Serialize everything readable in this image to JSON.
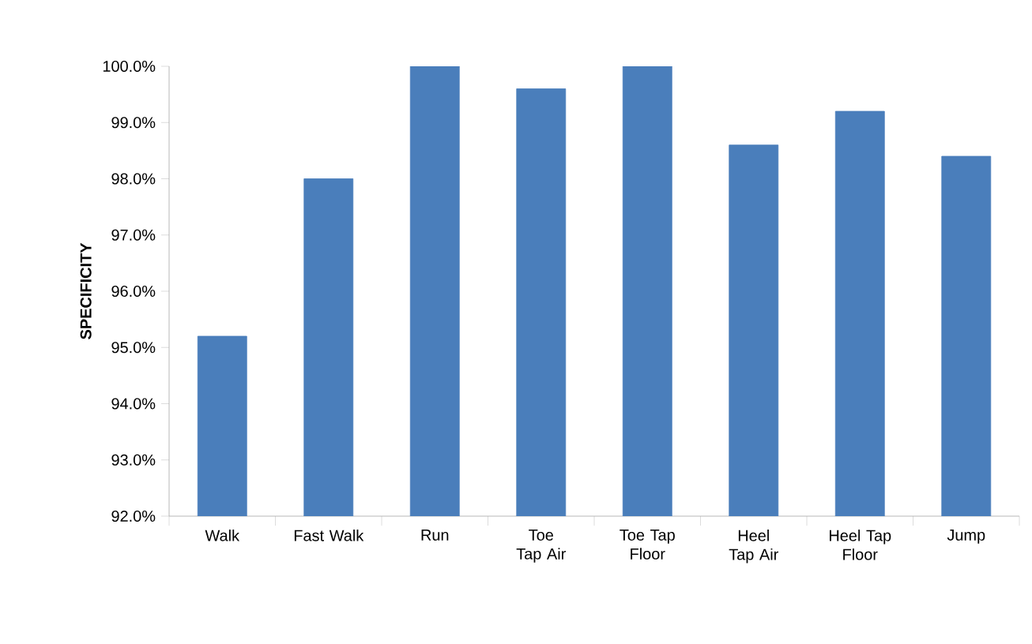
{
  "chart_data": {
    "type": "bar",
    "ylabel": "SPECIFICITY",
    "categories": [
      "Walk",
      "Fast Walk",
      "Run",
      "Toe Tap Air",
      "Toe Tap Floor",
      "Heel Tap Air",
      "Heel Tap Floor",
      "Jump"
    ],
    "values": [
      95.2,
      98.0,
      100.0,
      99.6,
      100.0,
      98.6,
      99.2,
      98.4
    ],
    "color": "#4a7ebb",
    "ylim": [
      92,
      100
    ],
    "yticks": [
      {
        "value": 92,
        "label": "92.0%"
      },
      {
        "value": 93,
        "label": "93.0%"
      },
      {
        "value": 94,
        "label": "94.0%"
      },
      {
        "value": 95,
        "label": "95.0%"
      },
      {
        "value": 96,
        "label": "96.0%"
      },
      {
        "value": 97,
        "label": "97.0%"
      },
      {
        "value": 98,
        "label": "98.0%"
      },
      {
        "value": 99,
        "label": "99.0%"
      },
      {
        "value": 100,
        "label": "100.0%"
      }
    ],
    "grid": false
  }
}
